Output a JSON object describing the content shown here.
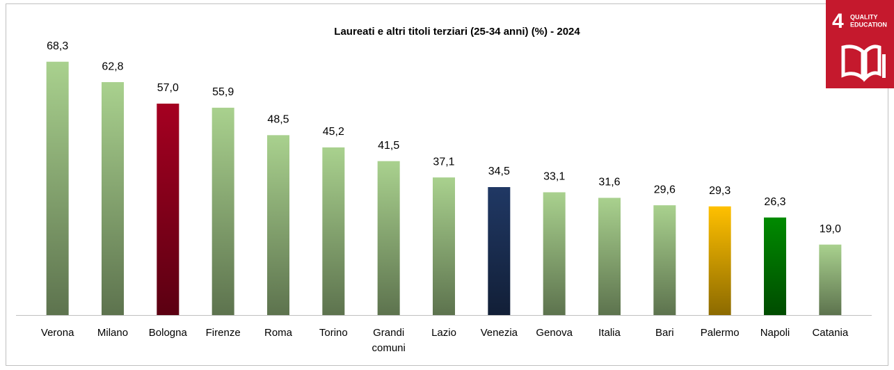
{
  "chart_data": {
    "type": "bar",
    "title": "Laureati e altri titoli terziari (25-34 anni) (%) - 2024",
    "categories": [
      "Verona",
      "Milano",
      "Bologna",
      "Firenze",
      "Roma",
      "Torino",
      "Grandi comuni",
      "Lazio",
      "Venezia",
      "Genova",
      "Italia",
      "Bari",
      "Palermo",
      "Napoli",
      "Catania"
    ],
    "values": [
      68.3,
      62.8,
      57.0,
      55.9,
      48.5,
      45.2,
      41.5,
      37.1,
      34.5,
      33.1,
      31.6,
      29.6,
      29.3,
      26.3,
      19.0
    ],
    "value_labels": [
      "68,3",
      "62,8",
      "57,0",
      "55,9",
      "48,5",
      "45,2",
      "41,5",
      "37,1",
      "34,5",
      "33,1",
      "31,6",
      "29,6",
      "29,3",
      "26,3",
      "19,0"
    ],
    "colors": [
      "#a9d18e",
      "#a9d18e",
      "#a50021",
      "#a9d18e",
      "#a9d18e",
      "#a9d18e",
      "#a9d18e",
      "#a9d18e",
      "#203864",
      "#a9d18e",
      "#a9d18e",
      "#a9d18e",
      "#ffc000",
      "#008a00",
      "#a9d18e"
    ],
    "ylim": [
      0,
      75
    ]
  },
  "badge": {
    "number": "4",
    "line1": "QUALITY",
    "line2": "EDUCATION"
  }
}
